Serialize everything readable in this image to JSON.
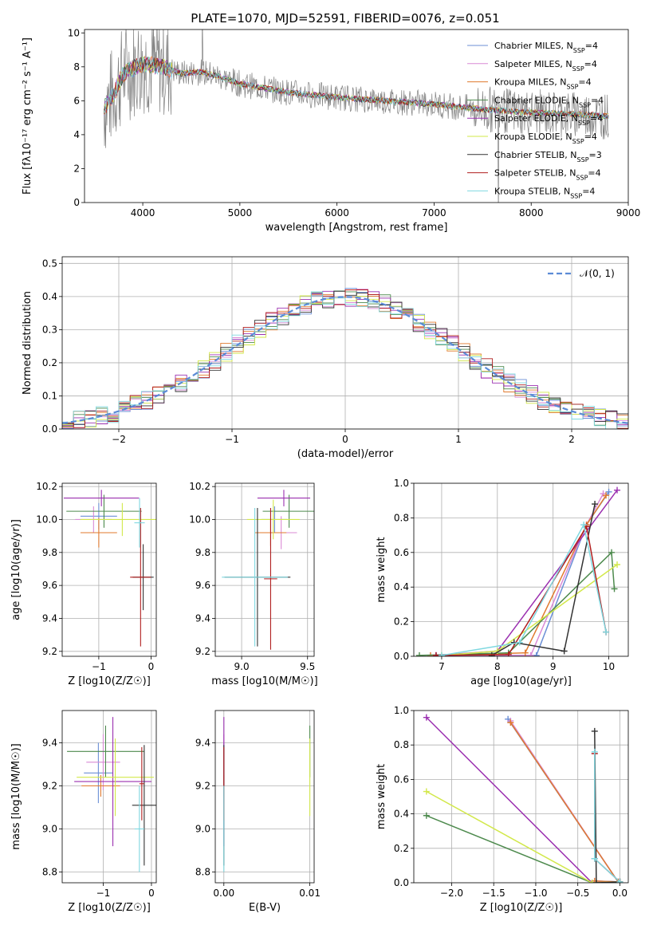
{
  "figure": {
    "title": "PLATE=1070, MJD=52591, FIBERID=0076, z=0.051"
  },
  "models": [
    {
      "name": "Chabrier MILES",
      "nssp": "4",
      "color": "#6b8fd6"
    },
    {
      "name": "Salpeter MILES",
      "nssp": "4",
      "color": "#d98ad6"
    },
    {
      "name": "Kroupa MILES",
      "nssp": "4",
      "color": "#e07a2e"
    },
    {
      "name": "Chabrier ELODIE",
      "nssp": "4",
      "color": "#4d8a4d"
    },
    {
      "name": "Salpeter ELODIE",
      "nssp": "4",
      "color": "#9b30b0"
    },
    {
      "name": "Kroupa ELODIE",
      "nssp": "4",
      "color": "#d2e84a"
    },
    {
      "name": "Chabrier STELIB",
      "nssp": "3",
      "color": "#333333"
    },
    {
      "name": "Salpeter STELIB",
      "nssp": "4",
      "color": "#b01e1e"
    },
    {
      "name": "Kroupa STELIB",
      "nssp": "4",
      "color": "#7fd8e0"
    }
  ],
  "chart_data": [
    {
      "id": "spectrum",
      "type": "line",
      "xlabel": "wavelength [Angstrom, rest frame]",
      "ylabel": "Flux [fλ10⁻¹⁷ erg cm⁻² s⁻¹ A⁻¹]",
      "xlim": [
        3400,
        9000
      ],
      "ylim": [
        0,
        10.2
      ],
      "xticks": [
        "4000",
        "5000",
        "6000",
        "7000",
        "8000",
        "9000"
      ],
      "yticks": [
        "0",
        "2",
        "4",
        "6",
        "8",
        "10"
      ],
      "data_color": "#808080",
      "continuum": [
        {
          "x": 3600,
          "y": 5.6
        },
        {
          "x": 3700,
          "y": 6.4
        },
        {
          "x": 3800,
          "y": 7.6
        },
        {
          "x": 4000,
          "y": 8.2
        },
        {
          "x": 4200,
          "y": 8.0
        },
        {
          "x": 4400,
          "y": 7.6
        },
        {
          "x": 4600,
          "y": 7.7
        },
        {
          "x": 4800,
          "y": 7.4
        },
        {
          "x": 5000,
          "y": 7.0
        },
        {
          "x": 5500,
          "y": 6.5
        },
        {
          "x": 6000,
          "y": 6.2
        },
        {
          "x": 6500,
          "y": 6.0
        },
        {
          "x": 7000,
          "y": 5.8
        },
        {
          "x": 7500,
          "y": 5.5
        },
        {
          "x": 8000,
          "y": 5.3
        },
        {
          "x": 8500,
          "y": 5.2
        },
        {
          "x": 8800,
          "y": 5.1
        }
      ]
    },
    {
      "id": "residuals",
      "type": "step",
      "xlabel": "(data-model)/error",
      "ylabel": "Normed distribution",
      "xlim": [
        -2.5,
        2.5
      ],
      "ylim": [
        0,
        0.52
      ],
      "xticks": [
        -2,
        -1,
        0,
        1,
        2
      ],
      "yticks": [
        "0.0",
        "0.1",
        "0.2",
        "0.3",
        "0.4",
        "0.5"
      ],
      "gaussian_label": "𝒩(0, 1)",
      "gaussian_color": "#5b8bd6"
    },
    {
      "id": "age-Z",
      "type": "scatter",
      "xlabel": "Z [log10(Z/Z☉)]",
      "ylabel": "age  [log10(age/yr)]",
      "xlim": [
        -1.7,
        0.1
      ],
      "ylim": [
        9.17,
        10.22
      ],
      "xticks": [
        -1,
        0
      ],
      "yticks": [
        "9.2",
        "9.4",
        "9.6",
        "9.8",
        "10.0",
        "10.2"
      ],
      "points": [
        {
          "m": 0,
          "x": -1.0,
          "y": 10.02,
          "ex": 0.35,
          "ey": 0.08
        },
        {
          "m": 1,
          "x": -1.1,
          "y": 10.0,
          "ex": 0.35,
          "ey": 0.08
        },
        {
          "m": 2,
          "x": -1.0,
          "y": 9.92,
          "ex": 0.35,
          "ey": 0.09
        },
        {
          "m": 3,
          "x": -0.9,
          "y": 10.05,
          "ex": 0.72,
          "ey": 0.1
        },
        {
          "m": 4,
          "x": -0.95,
          "y": 10.13,
          "ex": 0.72,
          "ey": 0.05
        },
        {
          "m": 5,
          "x": -0.55,
          "y": 10.0,
          "ex": 0.8,
          "ey": 0.1
        },
        {
          "m": 6,
          "x": -0.15,
          "y": 9.65,
          "ex": 0.2,
          "ey": 0.2
        },
        {
          "m": 7,
          "x": -0.2,
          "y": 9.65,
          "ex": 0.2,
          "ey": 0.42
        },
        {
          "m": 8,
          "x": -0.22,
          "y": 9.98,
          "ex": 0.1,
          "ey": 0.15
        }
      ]
    },
    {
      "id": "age-mass",
      "type": "scatter",
      "xlabel": "mass [log10(M/M☉)]",
      "ylabel": "",
      "xlim": [
        8.8,
        9.55
      ],
      "ylim": [
        9.17,
        10.22
      ],
      "xticks": [
        "9.0",
        "9.5"
      ],
      "yticks": [
        "9.2",
        "9.4",
        "9.6",
        "9.8",
        "10.0",
        "10.2"
      ],
      "points": [
        {
          "m": 0,
          "x": 9.25,
          "y": 10.0,
          "ex": 0.1,
          "ey": 0.08
        },
        {
          "m": 1,
          "x": 9.3,
          "y": 9.92,
          "ex": 0.12,
          "ey": 0.1
        },
        {
          "m": 2,
          "x": 9.22,
          "y": 9.92,
          "ex": 0.12,
          "ey": 0.08
        },
        {
          "m": 3,
          "x": 9.36,
          "y": 10.05,
          "ex": 0.2,
          "ey": 0.1
        },
        {
          "m": 4,
          "x": 9.32,
          "y": 10.13,
          "ex": 0.2,
          "ey": 0.05
        },
        {
          "m": 5,
          "x": 9.24,
          "y": 10.0,
          "ex": 0.2,
          "ey": 0.12
        },
        {
          "m": 6,
          "x": 9.12,
          "y": 9.65,
          "ex": 0.25,
          "ey": 0.42
        },
        {
          "m": 7,
          "x": 9.22,
          "y": 9.64,
          "ex": 0.05,
          "ey": 0.43
        },
        {
          "m": 8,
          "x": 9.1,
          "y": 9.65,
          "ex": 0.25,
          "ey": 0.42
        }
      ]
    },
    {
      "id": "weight-age",
      "type": "line",
      "xlabel": "age  [log10(age/yr)]",
      "ylabel": "mass weight",
      "xlim": [
        6.5,
        10.35
      ],
      "ylim": [
        0,
        1.0
      ],
      "xticks": [
        "7",
        "8",
        "9",
        "10"
      ],
      "yticks": [
        "0.0",
        "0.2",
        "0.4",
        "0.6",
        "0.8",
        "1.0"
      ],
      "series": [
        {
          "m": 0,
          "x": [
            6.9,
            8.7,
            9.6,
            10.0
          ],
          "y": [
            0.005,
            0.005,
            0.76,
            0.95
          ]
        },
        {
          "m": 1,
          "x": [
            6.9,
            8.6,
            9.6,
            9.9
          ],
          "y": [
            0.005,
            0.005,
            0.76,
            0.94
          ]
        },
        {
          "m": 2,
          "x": [
            6.8,
            8.5,
            9.6,
            9.95
          ],
          "y": [
            0.005,
            0.02,
            0.76,
            0.93
          ]
        },
        {
          "m": 3,
          "x": [
            6.6,
            8.2,
            10.05,
            10.1
          ],
          "y": [
            0.005,
            0.02,
            0.6,
            0.39
          ]
        },
        {
          "m": 4,
          "x": [
            6.9,
            8.0,
            10.15
          ],
          "y": [
            0.005,
            0.03,
            0.96
          ]
        },
        {
          "m": 5,
          "x": [
            7.0,
            8.0,
            10.15
          ],
          "y": [
            0.005,
            0.03,
            0.53
          ]
        },
        {
          "m": 6,
          "x": [
            7.9,
            8.3,
            9.2,
            9.75
          ],
          "y": [
            0.005,
            0.08,
            0.03,
            0.88
          ]
        },
        {
          "m": 7,
          "x": [
            6.9,
            8.2,
            9.6,
            9.95
          ],
          "y": [
            0.005,
            0.01,
            0.75,
            0.14
          ]
        },
        {
          "m": 8,
          "x": [
            7.0,
            8.4,
            9.55,
            9.95
          ],
          "y": [
            0.005,
            0.08,
            0.76,
            0.14
          ]
        }
      ]
    },
    {
      "id": "mass-Z",
      "type": "scatter",
      "xlabel": "Z [log10(Z/Z☉)]",
      "ylabel": "mass [log10(M/M☉)]",
      "xlim": [
        -1.85,
        0.1
      ],
      "ylim": [
        8.75,
        9.55
      ],
      "xticks": [
        -1,
        0
      ],
      "yticks": [
        "8.8",
        "9.0",
        "9.2",
        "9.4"
      ],
      "points": [
        {
          "m": 0,
          "x": -1.1,
          "y": 9.26,
          "ex": 0.3,
          "ey": 0.14
        },
        {
          "m": 1,
          "x": -1.0,
          "y": 9.31,
          "ex": 0.35,
          "ey": 0.13
        },
        {
          "m": 2,
          "x": -1.05,
          "y": 9.2,
          "ex": 0.4,
          "ey": 0.05
        },
        {
          "m": 3,
          "x": -0.95,
          "y": 9.36,
          "ex": 0.8,
          "ey": 0.12
        },
        {
          "m": 4,
          "x": -0.8,
          "y": 9.22,
          "ex": 0.8,
          "ey": 0.3
        },
        {
          "m": 5,
          "x": -0.75,
          "y": 9.24,
          "ex": 0.8,
          "ey": 0.18
        },
        {
          "m": 6,
          "x": -0.15,
          "y": 9.11,
          "ex": 0.25,
          "ey": 0.28
        },
        {
          "m": 7,
          "x": -0.2,
          "y": 9.21,
          "ex": 0.05,
          "ey": 0.17
        },
        {
          "m": 8,
          "x": -0.25,
          "y": 9.0,
          "ex": 0.1,
          "ey": 0.2
        }
      ]
    },
    {
      "id": "mass-ebv",
      "type": "scatter",
      "xlabel": "E(B-V)",
      "ylabel": "",
      "xlim": [
        -0.001,
        0.0105
      ],
      "ylim": [
        8.75,
        9.55
      ],
      "xticks": [
        "0.00",
        "0.01"
      ],
      "yticks": [
        "8.8",
        "9.0",
        "9.2",
        "9.4"
      ],
      "points": [
        {
          "m": 0,
          "x": 0.0,
          "y": 9.26,
          "ex": 0,
          "ey": 0.14
        },
        {
          "m": 1,
          "x": 0.0,
          "y": 9.31,
          "ex": 0,
          "ey": 0.13
        },
        {
          "m": 2,
          "x": 0.0,
          "y": 9.2,
          "ex": 0,
          "ey": 0.05
        },
        {
          "m": 3,
          "x": 0.01,
          "y": 9.36,
          "ex": 0,
          "ey": 0.12
        },
        {
          "m": 4,
          "x": 0.0,
          "y": 9.22,
          "ex": 0,
          "ey": 0.3
        },
        {
          "m": 5,
          "x": 0.01,
          "y": 9.24,
          "ex": 0,
          "ey": 0.18
        },
        {
          "m": 6,
          "x": 0.0,
          "y": 9.11,
          "ex": 0,
          "ey": 0.28
        },
        {
          "m": 7,
          "x": 0.0,
          "y": 9.21,
          "ex": 0,
          "ey": 0.17
        },
        {
          "m": 8,
          "x": 0.0,
          "y": 9.0,
          "ex": 0,
          "ey": 0.2
        }
      ]
    },
    {
      "id": "weight-Z",
      "type": "line",
      "xlabel": "Z [log10(Z/Z☉)]",
      "ylabel": "mass weight",
      "xlim": [
        -2.45,
        0.1
      ],
      "ylim": [
        0,
        1.0
      ],
      "xticks": [
        "−2.0",
        "−1.5",
        "−1.0",
        "−0.5",
        "0.0"
      ],
      "xtickvals": [
        -2.0,
        -1.5,
        -1.0,
        -0.5,
        0.0
      ],
      "yticks": [
        "0.0",
        "0.2",
        "0.4",
        "0.6",
        "0.8",
        "1.0"
      ],
      "series": [
        {
          "m": 0,
          "x": [
            -1.33,
            -0.02,
            -0.3,
            0.0
          ],
          "y": [
            0.95,
            0.005,
            0.01,
            0.005
          ]
        },
        {
          "m": 1,
          "x": [
            -1.3,
            -0.02,
            -0.3
          ],
          "y": [
            0.94,
            0.005,
            0.01
          ]
        },
        {
          "m": 2,
          "x": [
            -1.3,
            -0.02,
            -0.3
          ],
          "y": [
            0.93,
            0.005,
            0.01
          ]
        },
        {
          "m": 3,
          "x": [
            -2.3,
            -0.33,
            0.0
          ],
          "y": [
            0.39,
            0.0,
            0.005
          ]
        },
        {
          "m": 4,
          "x": [
            -2.3,
            -0.33,
            0.0
          ],
          "y": [
            0.96,
            0.0,
            0.005
          ]
        },
        {
          "m": 5,
          "x": [
            -2.3,
            -0.33,
            0.0
          ],
          "y": [
            0.53,
            0.0,
            0.005
          ]
        },
        {
          "m": 6,
          "x": [
            -0.3,
            -0.28,
            0.0
          ],
          "y": [
            0.88,
            0.0,
            0.005
          ]
        },
        {
          "m": 7,
          "x": [
            -0.3,
            -0.3,
            0.0
          ],
          "y": [
            0.75,
            0.14,
            0.005
          ]
        },
        {
          "m": 8,
          "x": [
            -0.3,
            -0.3,
            0.0
          ],
          "y": [
            0.76,
            0.14,
            0.005
          ]
        }
      ]
    }
  ]
}
